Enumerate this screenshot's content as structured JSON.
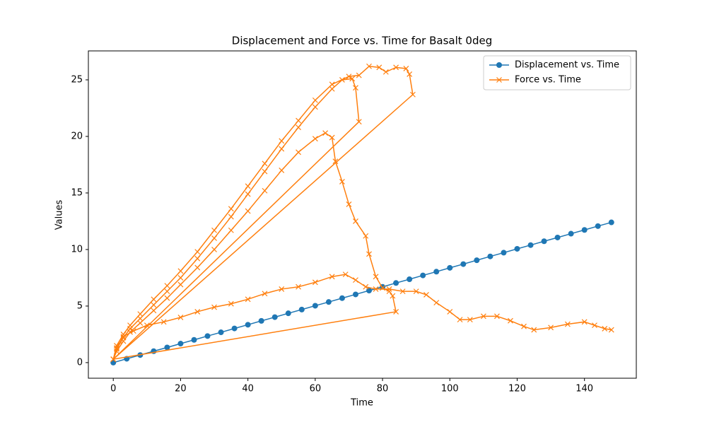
{
  "chart_data": {
    "type": "line",
    "title": "Displacement and Force vs. Time for Basalt 0deg",
    "x_label": "Time",
    "y_label": "Values",
    "xlim": [
      -7.4,
      155.4
    ],
    "ylim": [
      -1.38,
      27.56
    ],
    "xticks": [
      0,
      20,
      40,
      60,
      80,
      100,
      120,
      140
    ],
    "yticks": [
      0,
      5,
      10,
      15,
      20,
      25
    ],
    "legend": "upper right",
    "series": [
      {
        "name": "Displacement vs. Time",
        "color": "#1f77b4",
        "marker": "o",
        "x": [
          0,
          4,
          8,
          12,
          16,
          20,
          24,
          28,
          32,
          36,
          40,
          44,
          48,
          52,
          56,
          60,
          64,
          68,
          72,
          76,
          80,
          84,
          88,
          92,
          96,
          100,
          104,
          108,
          112,
          116,
          120,
          124,
          128,
          132,
          136,
          140,
          144,
          148
        ],
        "values": [
          0,
          0.34,
          0.67,
          1.01,
          1.34,
          1.68,
          2.01,
          2.35,
          2.68,
          3.02,
          3.35,
          3.69,
          4.02,
          4.36,
          4.69,
          5.03,
          5.36,
          5.7,
          6.03,
          6.37,
          6.7,
          7.04,
          7.37,
          7.71,
          8.04,
          8.38,
          8.71,
          9.05,
          9.39,
          9.72,
          10.06,
          10.39,
          10.73,
          11.06,
          11.4,
          11.73,
          12.07,
          12.4
        ]
      },
      {
        "name": "Force vs. Time",
        "color": "#ff7f0e",
        "marker": "x",
        "x": [
          0,
          1,
          3,
          5,
          8,
          12,
          16,
          20,
          25,
          30,
          35,
          40,
          45,
          50,
          55,
          60,
          65,
          70,
          73,
          76,
          79,
          81,
          84,
          87,
          88,
          89,
          0,
          1,
          3,
          5,
          8,
          12,
          16,
          20,
          25,
          30,
          35,
          40,
          45,
          50,
          55,
          60,
          65,
          68,
          71,
          72,
          73,
          0,
          1,
          3,
          5,
          8,
          12,
          16,
          20,
          25,
          30,
          35,
          40,
          45,
          50,
          55,
          60,
          63,
          65,
          66,
          68,
          70,
          72,
          75,
          76,
          78,
          80,
          82,
          83,
          84,
          0,
          1,
          3,
          6,
          10,
          15,
          20,
          25,
          30,
          35,
          40,
          45,
          50,
          55,
          60,
          65,
          69,
          72,
          75,
          78,
          82,
          86,
          90,
          93,
          96,
          100,
          103,
          106,
          110,
          114,
          118,
          122,
          125,
          130,
          135,
          140,
          143,
          146,
          148
        ],
        "values": [
          0.3,
          1.5,
          2.5,
          3.3,
          4.3,
          5.6,
          6.8,
          8.1,
          9.8,
          11.7,
          13.6,
          15.6,
          17.6,
          19.6,
          21.4,
          23.2,
          24.6,
          25.3,
          25.4,
          26.2,
          26.1,
          25.7,
          26.1,
          26,
          25.5,
          23.7,
          0.3,
          1.2,
          2.2,
          3,
          3.9,
          5.1,
          6.3,
          7.5,
          9.2,
          11,
          12.9,
          14.9,
          16.9,
          18.9,
          20.8,
          22.6,
          24.2,
          25,
          25.1,
          24.3,
          21.3,
          0.3,
          1,
          1.9,
          2.7,
          3.5,
          4.6,
          5.7,
          6.9,
          8.4,
          10,
          11.7,
          13.4,
          15.2,
          17,
          18.6,
          19.8,
          20.3,
          19.9,
          17.8,
          16,
          14,
          12.5,
          11.2,
          9.6,
          7.6,
          6.6,
          6.3,
          5.9,
          4.5,
          0.3,
          1.3,
          2.3,
          2.8,
          3.3,
          3.6,
          4,
          4.5,
          4.9,
          5.2,
          5.6,
          6.1,
          6.5,
          6.7,
          7.1,
          7.6,
          7.8,
          7.3,
          6.7,
          6.5,
          6.5,
          6.3,
          6.3,
          6,
          5.3,
          4.5,
          3.8,
          3.8,
          4.1,
          4.1,
          3.7,
          3.2,
          2.9,
          3.1,
          3.4,
          3.6,
          3.3,
          3,
          2.9
        ]
      }
    ]
  }
}
